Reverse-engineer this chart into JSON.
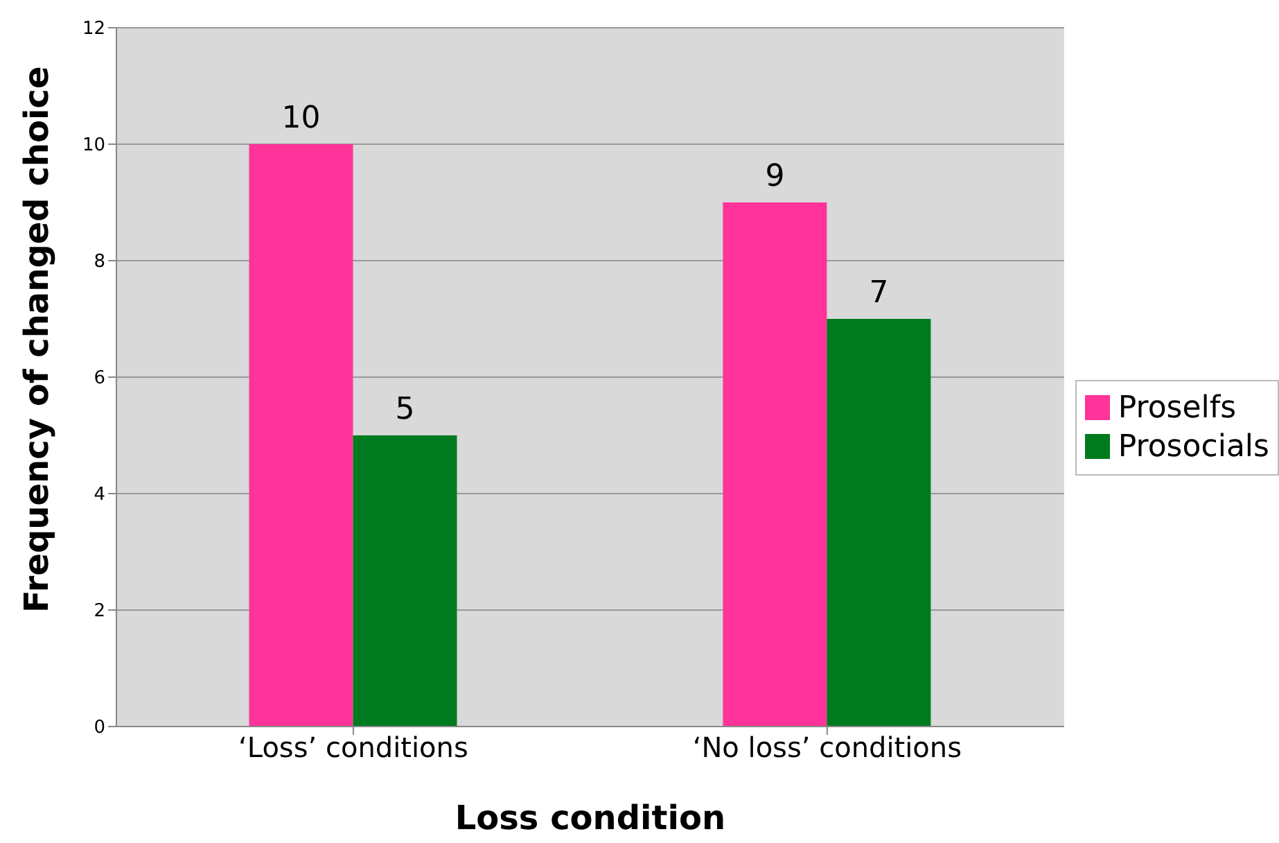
{
  "chart_data": {
    "type": "bar",
    "xlabel": "Loss condition",
    "ylabel": "Frequency of changed choice",
    "categories": [
      "‘Loss’ conditions",
      "‘No loss’ conditions"
    ],
    "series": [
      {
        "name": "Proselfs",
        "color": "#ff3399",
        "values": [
          10,
          9
        ]
      },
      {
        "name": "Prosocials",
        "color": "#007a1e",
        "values": [
          5,
          7
        ]
      }
    ],
    "ylim": [
      0,
      12
    ],
    "yticks": [
      0,
      2,
      4,
      6,
      8,
      10,
      12
    ],
    "grid": "y",
    "legend": "right",
    "data_labels": true
  }
}
